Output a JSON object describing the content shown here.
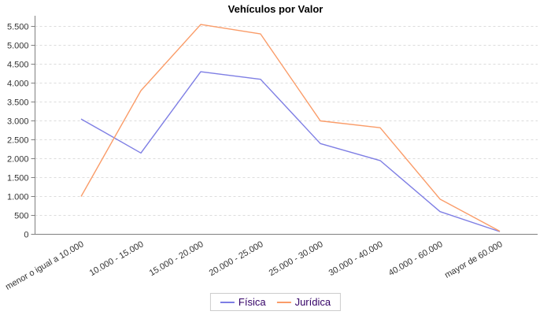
{
  "chart_data": {
    "type": "line",
    "title": "Vehículos por Valor",
    "categories": [
      "menor o igual a 10.000",
      "10.000 - 15.000",
      "15.000 - 20.000",
      "20.000 - 25.000",
      "25.000 - 30.000",
      "30.000 - 40.000",
      "40.000 - 60.000",
      "mayor de 60.000"
    ],
    "series": [
      {
        "name": "Física",
        "color": "#7E7EE4",
        "values": [
          3050,
          2150,
          4300,
          4100,
          2400,
          1950,
          600,
          70
        ]
      },
      {
        "name": "Jurídica",
        "color": "#FA9C69",
        "values": [
          1000,
          3800,
          5550,
          5300,
          3000,
          2820,
          930,
          80
        ]
      }
    ],
    "xlabel": "",
    "ylabel": "",
    "ylim": [
      0,
      5500
    ],
    "ytick_step": 500,
    "ytick_labels": [
      "0",
      "500",
      "1.000",
      "1.500",
      "2.000",
      "2.500",
      "3.000",
      "3.500",
      "4.000",
      "4.500",
      "5.000",
      "5.500"
    ],
    "grid": true,
    "gridline_color": "#dcdcdc",
    "axis_color": "#808080",
    "label_color": "#333333",
    "legend_position": "bottom",
    "legend_text_color": "#330066",
    "legend_border_color": "#cccccc"
  }
}
